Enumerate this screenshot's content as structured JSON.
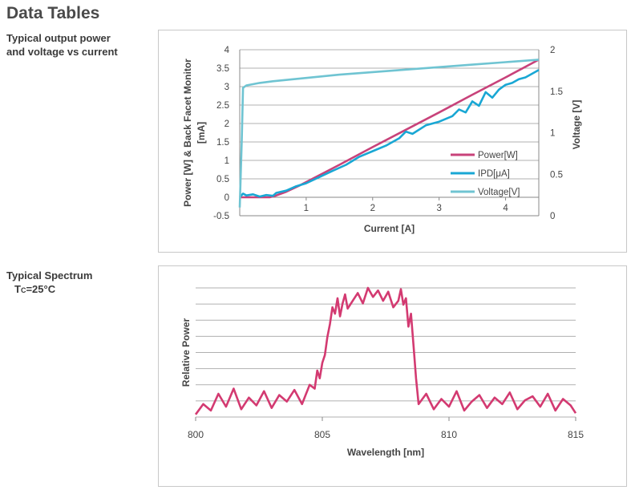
{
  "page": {
    "title": "Data Tables",
    "section1": {
      "line1": "Typical output power",
      "line2": "and voltage vs current"
    },
    "section2": {
      "line1": "Typical Spectrum",
      "line2_prefix": "T",
      "line2_sub": "C",
      "line2_suffix": "=25°C"
    }
  },
  "colors": {
    "power": "#c8427a",
    "ipd": "#19a7d4",
    "voltage": "#6fc4d2",
    "spectrum": "#d33a71",
    "grid": "#b0b0b0"
  },
  "chart_data": [
    {
      "type": "line",
      "title": "Typical output power and voltage vs current",
      "xlabel": "Current [A]",
      "ylabel_line1": "Power [W] & Back Facet Monitor",
      "ylabel_line2": "[mA]",
      "y2label": "Voltage [V]",
      "xlim": [
        0,
        4.5
      ],
      "ylim": [
        -0.5,
        4
      ],
      "y2lim": [
        0,
        2
      ],
      "xticks": [
        "1",
        "2",
        "3",
        "4"
      ],
      "xtick_values": [
        1,
        2,
        3,
        4
      ],
      "yticks": [
        "-0.5",
        "0",
        "0.5",
        "1",
        "1.5",
        "2",
        "2.5",
        "3",
        "3.5",
        "4"
      ],
      "ytick_values": [
        -0.5,
        0,
        0.5,
        1,
        1.5,
        2,
        2.5,
        3,
        3.5,
        4
      ],
      "y2ticks": [
        "0",
        "0.5",
        "1",
        "1.5",
        "2"
      ],
      "y2tick_values": [
        0,
        0.5,
        1,
        1.5,
        2
      ],
      "legend": [
        "Power[W]",
        "IPD[μA]",
        "Voltage[V]"
      ],
      "legend_position": "center-right",
      "series": [
        {
          "name": "Power[W]",
          "axis": "left",
          "x": [
            0,
            0.45,
            0.55,
            0.7,
            0.9,
            1.2,
            1.5,
            2.0,
            2.5,
            3.0,
            3.5,
            4.0,
            4.5
          ],
          "y": [
            0,
            0,
            0.05,
            0.15,
            0.32,
            0.6,
            0.88,
            1.36,
            1.83,
            2.3,
            2.78,
            3.25,
            3.73
          ]
        },
        {
          "name": "IPD[μA]",
          "axis": "left",
          "x": [
            0,
            0.05,
            0.1,
            0.2,
            0.3,
            0.4,
            0.5,
            0.55,
            0.7,
            0.85,
            1.0,
            1.2,
            1.4,
            1.6,
            1.8,
            2.0,
            2.2,
            2.4,
            2.5,
            2.6,
            2.8,
            3.0,
            3.2,
            3.3,
            3.4,
            3.5,
            3.6,
            3.7,
            3.8,
            3.9,
            4.0,
            4.1,
            4.2,
            4.3,
            4.4,
            4.5
          ],
          "y": [
            0,
            0.1,
            0.05,
            0.08,
            0.02,
            0.06,
            0.04,
            0.12,
            0.18,
            0.3,
            0.38,
            0.55,
            0.72,
            0.88,
            1.1,
            1.25,
            1.4,
            1.6,
            1.78,
            1.72,
            1.95,
            2.05,
            2.2,
            2.38,
            2.3,
            2.6,
            2.48,
            2.85,
            2.7,
            2.92,
            3.05,
            3.1,
            3.2,
            3.25,
            3.35,
            3.45
          ]
        },
        {
          "name": "Voltage[V]",
          "axis": "right",
          "x": [
            0,
            0.03,
            0.05,
            0.1,
            0.3,
            0.5,
            1.0,
            1.5,
            2.0,
            2.5,
            3.0,
            3.5,
            4.0,
            4.5
          ],
          "y": [
            0.1,
            0.9,
            1.54,
            1.57,
            1.6,
            1.62,
            1.66,
            1.7,
            1.73,
            1.76,
            1.79,
            1.82,
            1.85,
            1.88
          ]
        }
      ]
    },
    {
      "type": "line",
      "title": "Typical Spectrum",
      "xlabel": "Wavelength [nm]",
      "ylabel": "Relative Power",
      "xlim": [
        800,
        815
      ],
      "ylim": [
        0,
        1
      ],
      "xticks": [
        "800",
        "805",
        "810",
        "815"
      ],
      "xtick_values": [
        800,
        805,
        810,
        815
      ],
      "grid_lines": 8,
      "series": [
        {
          "name": "Spectrum",
          "x": [
            800.0,
            800.3,
            800.6,
            800.9,
            801.2,
            801.5,
            801.8,
            802.1,
            802.4,
            802.7,
            803.0,
            803.3,
            803.6,
            803.9,
            804.2,
            804.5,
            804.7,
            804.8,
            804.9,
            805.0,
            805.1,
            805.2,
            805.3,
            805.4,
            805.5,
            805.6,
            805.7,
            805.8,
            805.9,
            806.0,
            806.2,
            806.4,
            806.6,
            806.8,
            807.0,
            807.2,
            807.4,
            807.6,
            807.8,
            808.0,
            808.1,
            808.2,
            808.3,
            808.4,
            808.5,
            808.6,
            808.7,
            808.8,
            809.1,
            809.4,
            809.7,
            810.0,
            810.3,
            810.6,
            810.9,
            811.2,
            811.5,
            811.8,
            812.1,
            812.4,
            812.7,
            813.0,
            813.3,
            813.6,
            813.9,
            814.2,
            814.5,
            814.8,
            815.0
          ],
          "y": [
            0.02,
            0.1,
            0.05,
            0.18,
            0.08,
            0.22,
            0.06,
            0.15,
            0.09,
            0.2,
            0.07,
            0.17,
            0.12,
            0.21,
            0.1,
            0.25,
            0.22,
            0.36,
            0.3,
            0.42,
            0.48,
            0.62,
            0.72,
            0.85,
            0.8,
            0.92,
            0.78,
            0.88,
            0.95,
            0.84,
            0.9,
            0.96,
            0.88,
            1.0,
            0.93,
            0.98,
            0.9,
            0.97,
            0.85,
            0.9,
            0.99,
            0.87,
            0.92,
            0.7,
            0.8,
            0.55,
            0.3,
            0.1,
            0.18,
            0.06,
            0.14,
            0.08,
            0.2,
            0.05,
            0.12,
            0.17,
            0.07,
            0.15,
            0.1,
            0.19,
            0.06,
            0.13,
            0.16,
            0.08,
            0.18,
            0.05,
            0.14,
            0.09,
            0.03
          ]
        }
      ]
    }
  ]
}
